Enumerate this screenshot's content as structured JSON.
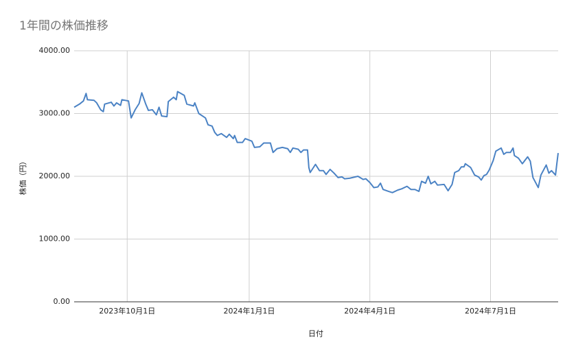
{
  "chart_data": {
    "type": "line",
    "title": "1年間の株価推移",
    "x_label": "日付",
    "y_label": "株価（円）",
    "x": [
      "2023-08-22",
      "2023-08-26",
      "2023-08-29",
      "2023-08-31",
      "2023-09-01",
      "2023-09-06",
      "2023-09-08",
      "2023-09-11",
      "2023-09-13",
      "2023-09-14",
      "2023-09-19",
      "2023-09-21",
      "2023-09-23",
      "2023-09-26",
      "2023-09-27",
      "2023-10-02",
      "2023-10-04",
      "2023-10-07",
      "2023-10-10",
      "2023-10-12",
      "2023-10-15",
      "2023-10-17",
      "2023-10-20",
      "2023-10-23",
      "2023-10-25",
      "2023-10-27",
      "2023-10-31",
      "2023-11-01",
      "2023-11-05",
      "2023-11-07",
      "2023-11-08",
      "2023-11-13",
      "2023-11-15",
      "2023-11-20",
      "2023-11-21",
      "2023-11-24",
      "2023-11-29",
      "2023-12-01",
      "2023-12-04",
      "2023-12-06",
      "2023-12-08",
      "2023-12-11",
      "2023-12-15",
      "2023-12-17",
      "2023-12-20",
      "2023-12-21",
      "2023-12-23",
      "2023-12-27",
      "2023-12-29",
      "2024-01-03",
      "2024-01-05",
      "2024-01-09",
      "2024-01-12",
      "2024-01-17",
      "2024-01-19",
      "2024-01-22",
      "2024-01-26",
      "2024-01-30",
      "2024-02-01",
      "2024-02-03",
      "2024-02-07",
      "2024-02-09",
      "2024-02-11",
      "2024-02-14",
      "2024-02-15",
      "2024-02-16",
      "2024-02-20",
      "2024-02-23",
      "2024-02-26",
      "2024-02-28",
      "2024-03-02",
      "2024-03-05",
      "2024-03-08",
      "2024-03-11",
      "2024-03-13",
      "2024-03-17",
      "2024-03-23",
      "2024-03-27",
      "2024-03-29",
      "2024-04-01",
      "2024-04-04",
      "2024-04-07",
      "2024-04-09",
      "2024-04-11",
      "2024-04-15",
      "2024-04-18",
      "2024-04-22",
      "2024-04-25",
      "2024-04-29",
      "2024-05-02",
      "2024-05-05",
      "2024-05-08",
      "2024-05-10",
      "2024-05-13",
      "2024-05-15",
      "2024-05-17",
      "2024-05-20",
      "2024-05-22",
      "2024-05-27",
      "2024-05-30",
      "2024-06-02",
      "2024-06-04",
      "2024-06-07",
      "2024-06-09",
      "2024-06-11",
      "2024-06-12",
      "2024-06-16",
      "2024-06-19",
      "2024-06-22",
      "2024-06-24",
      "2024-06-26",
      "2024-06-28",
      "2024-06-30",
      "2024-07-03",
      "2024-07-05",
      "2024-07-09",
      "2024-07-11",
      "2024-07-13",
      "2024-07-16",
      "2024-07-18",
      "2024-07-19",
      "2024-07-22",
      "2024-07-25",
      "2024-07-29",
      "2024-07-31",
      "2024-08-02",
      "2024-08-06",
      "2024-08-08",
      "2024-08-12",
      "2024-08-14",
      "2024-08-16",
      "2024-08-19",
      "2024-08-20",
      "2024-08-21"
    ],
    "series": [
      {
        "name": "株価",
        "color": "#4a82c4",
        "values": [
          3100,
          3150,
          3200,
          3320,
          3220,
          3210,
          3170,
          3060,
          3030,
          3150,
          3180,
          3120,
          3170,
          3130,
          3220,
          3200,
          2930,
          3060,
          3160,
          3330,
          3150,
          3050,
          3060,
          2980,
          3100,
          2960,
          2950,
          3190,
          3260,
          3220,
          3350,
          3290,
          3150,
          3120,
          3170,
          3000,
          2930,
          2820,
          2800,
          2700,
          2650,
          2680,
          2620,
          2670,
          2600,
          2650,
          2540,
          2540,
          2600,
          2560,
          2460,
          2470,
          2530,
          2530,
          2380,
          2440,
          2460,
          2440,
          2380,
          2450,
          2430,
          2380,
          2420,
          2420,
          2140,
          2060,
          2190,
          2090,
          2090,
          2030,
          2110,
          2050,
          1980,
          1990,
          1960,
          1970,
          2000,
          1950,
          1960,
          1900,
          1820,
          1830,
          1890,
          1790,
          1760,
          1740,
          1780,
          1800,
          1840,
          1790,
          1790,
          1760,
          1920,
          1890,
          2000,
          1880,
          1920,
          1860,
          1870,
          1770,
          1870,
          2060,
          2090,
          2150,
          2150,
          2200,
          2140,
          2020,
          1990,
          1940,
          2010,
          2030,
          2100,
          2250,
          2400,
          2450,
          2350,
          2380,
          2380,
          2450,
          2330,
          2290,
          2200,
          2310,
          2240,
          1980,
          1820,
          2020,
          2180,
          2050,
          2090,
          2020,
          2200,
          2370
        ]
      }
    ],
    "xlim": [
      "2023-08-22",
      "2024-08-21"
    ],
    "xticks": [
      {
        "value": "2023-10-01",
        "label": "2023年10月1日"
      },
      {
        "value": "2024-01-01",
        "label": "2024年1月1日"
      },
      {
        "value": "2024-04-01",
        "label": "2024年4月1日"
      },
      {
        "value": "2024-07-01",
        "label": "2024年7月1日"
      }
    ],
    "ylim": [
      0,
      4000
    ],
    "yticks": [
      {
        "value": 0,
        "label": "0.00"
      },
      {
        "value": 1000,
        "label": "1000.00"
      },
      {
        "value": 2000,
        "label": "2000.00"
      },
      {
        "value": 3000,
        "label": "3000.00"
      },
      {
        "value": 4000,
        "label": "4000.00"
      }
    ],
    "grid": true
  }
}
